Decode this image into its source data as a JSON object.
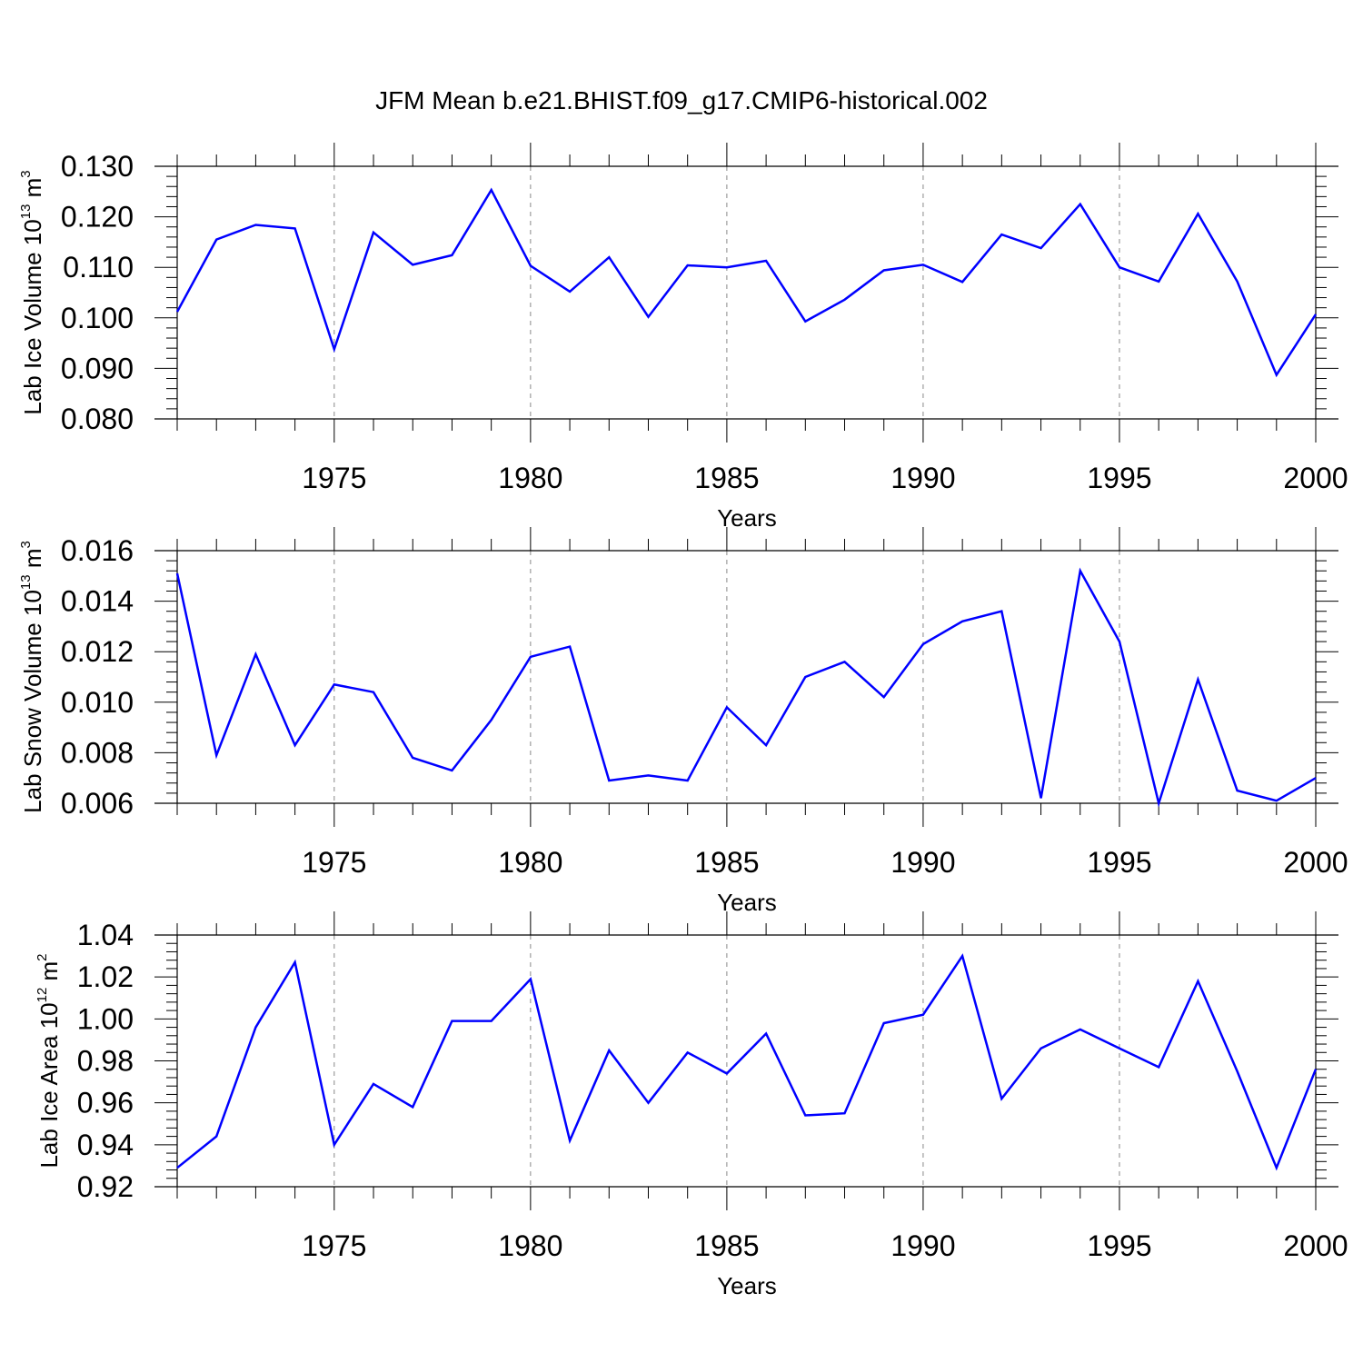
{
  "figure_title": "JFM Mean b.e21.BHIST.f09_g17.CMIP6-historical.002",
  "colors": {
    "line": "#0000ff",
    "axis": "#000000",
    "grid": "#888888"
  },
  "chart_data": [
    {
      "type": "line",
      "ylabel": {
        "text": "Lab Ice Volume 10",
        "sup": "13",
        "unit": " m",
        "unit_sup": "3"
      },
      "xlabel": "Years",
      "xlim": [
        1971,
        2000
      ],
      "ylim": [
        0.08,
        0.13
      ],
      "ytick_labels": [
        "0.080",
        "0.090",
        "0.100",
        "0.110",
        "0.120",
        "0.130"
      ],
      "xtick_labels": [
        "1975",
        "1980",
        "1985",
        "1990",
        "1995",
        "2000"
      ],
      "grid": "vertical dashed at major x ticks",
      "series": [
        {
          "x": [
            1971,
            1972,
            1973,
            1974,
            1975,
            1976,
            1977,
            1978,
            1979,
            1980,
            1981,
            1982,
            1983,
            1984,
            1985,
            1986,
            1987,
            1988,
            1989,
            1990,
            1991,
            1992,
            1993,
            1994,
            1995,
            1996,
            1997,
            1998,
            1999,
            2000
          ],
          "values": [
            0.1012,
            0.1155,
            0.1184,
            0.1177,
            0.0938,
            0.1169,
            0.1105,
            0.1124,
            0.1253,
            0.1103,
            0.1052,
            0.112,
            0.1002,
            0.1104,
            0.11,
            0.1113,
            0.0993,
            0.1036,
            0.1094,
            0.1105,
            0.1071,
            0.1165,
            0.1138,
            0.1225,
            0.11,
            0.1072,
            0.1206,
            0.1072,
            0.0887,
            0.1007
          ]
        }
      ]
    },
    {
      "type": "line",
      "ylabel": {
        "text": "Lab Snow Volume 10",
        "sup": "13",
        "unit": " m",
        "unit_sup": "3"
      },
      "xlabel": "Years",
      "xlim": [
        1971,
        2000
      ],
      "ylim": [
        0.006,
        0.016
      ],
      "ytick_labels": [
        "0.006",
        "0.008",
        "0.010",
        "0.012",
        "0.014",
        "0.016"
      ],
      "xtick_labels": [
        "1975",
        "1980",
        "1985",
        "1990",
        "1995",
        "2000"
      ],
      "grid": "vertical dashed at major x ticks",
      "series": [
        {
          "x": [
            1971,
            1972,
            1973,
            1974,
            1975,
            1976,
            1977,
            1978,
            1979,
            1980,
            1981,
            1982,
            1983,
            1984,
            1985,
            1986,
            1987,
            1988,
            1989,
            1990,
            1991,
            1992,
            1993,
            1994,
            1995,
            1996,
            1997,
            1998,
            1999,
            2000
          ],
          "values": [
            0.0151,
            0.0079,
            0.0119,
            0.0083,
            0.0107,
            0.0104,
            0.0078,
            0.0073,
            0.0093,
            0.0118,
            0.0122,
            0.0069,
            0.0071,
            0.0069,
            0.0098,
            0.0083,
            0.011,
            0.0116,
            0.0102,
            0.0123,
            0.0132,
            0.0136,
            0.0062,
            0.0152,
            0.0124,
            0.006,
            0.0109,
            0.0065,
            0.0061,
            0.007
          ]
        }
      ]
    },
    {
      "type": "line",
      "ylabel": {
        "text": "Lab Ice Area 10",
        "sup": "12",
        "unit": " m",
        "unit_sup": "2"
      },
      "xlabel": "Years",
      "xlim": [
        1971,
        2000
      ],
      "ylim": [
        0.92,
        1.04
      ],
      "ytick_labels": [
        "0.92",
        "0.94",
        "0.96",
        "0.98",
        "1.00",
        "1.02",
        "1.04"
      ],
      "xtick_labels": [
        "1975",
        "1980",
        "1985",
        "1990",
        "1995",
        "2000"
      ],
      "grid": "vertical dashed at major x ticks",
      "series": [
        {
          "x": [
            1971,
            1972,
            1973,
            1974,
            1975,
            1976,
            1977,
            1978,
            1979,
            1980,
            1981,
            1982,
            1983,
            1984,
            1985,
            1986,
            1987,
            1988,
            1989,
            1990,
            1991,
            1992,
            1993,
            1994,
            1995,
            1996,
            1997,
            1998,
            1999,
            2000
          ],
          "values": [
            0.929,
            0.944,
            0.996,
            1.027,
            0.94,
            0.969,
            0.958,
            0.999,
            0.999,
            1.019,
            0.942,
            0.985,
            0.96,
            0.984,
            0.974,
            0.993,
            0.954,
            0.955,
            0.998,
            1.002,
            1.03,
            0.962,
            0.986,
            0.995,
            0.986,
            0.977,
            1.018,
            0.975,
            0.929,
            0.976
          ]
        }
      ]
    }
  ]
}
